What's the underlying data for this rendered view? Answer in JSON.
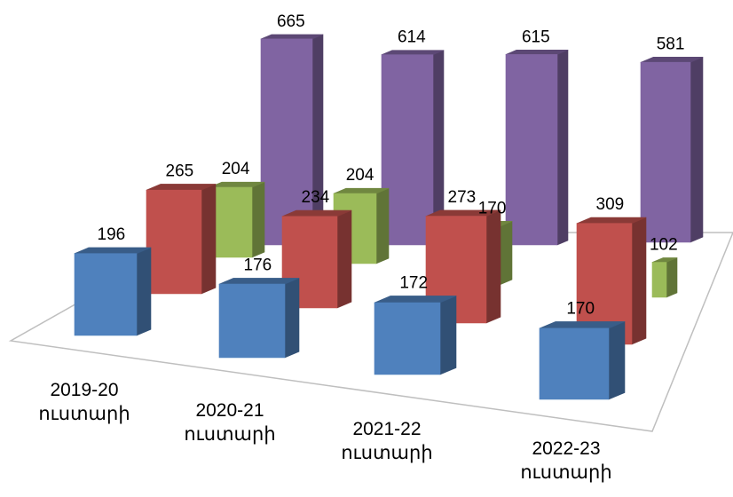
{
  "chart_data": {
    "type": "bar",
    "variant": "3d-clustered-depth",
    "title": "",
    "xlabel": "",
    "ylabel": "",
    "grid": false,
    "legend": "none",
    "categories": [
      {
        "year": "2019-20",
        "unit": "ուստարի"
      },
      {
        "year": "2020-21",
        "unit": "ուստարի"
      },
      {
        "year": "2021-22",
        "unit": "ուստարի"
      },
      {
        "year": "2022-23",
        "unit": "ուստարի"
      }
    ],
    "series": [
      {
        "values": [
          665,
          614,
          615,
          581
        ],
        "color": "#8064a2"
      },
      {
        "values": [
          204,
          204,
          170,
          102
        ],
        "color": "#9bbb59"
      },
      {
        "values": [
          265,
          234,
          273,
          309
        ],
        "color": "#c0504d"
      },
      {
        "values": [
          196,
          176,
          172,
          170
        ],
        "color": "#4f81bd"
      }
    ]
  }
}
